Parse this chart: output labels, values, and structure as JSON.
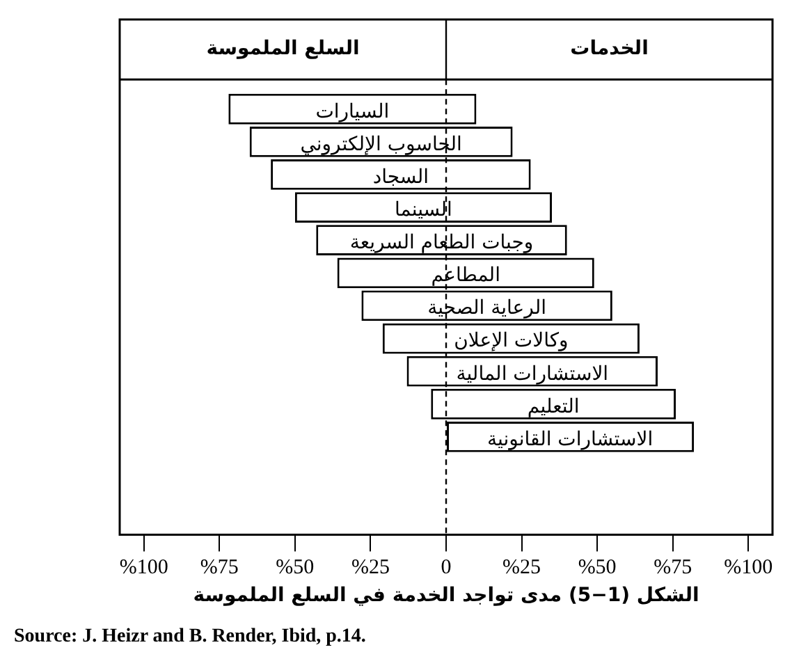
{
  "chart_data": {
    "type": "bar",
    "orientation": "horizontal",
    "xlabel": "الشكل (1−5) مدى تواجد الخدمة في السلع الملموسة",
    "categories": [
      "السيارات",
      "الحاسوب الإلكتروني",
      "السجاد",
      "السينما",
      "وجبات الطعام السريعة",
      "المطاعم",
      "الرعاية الصحية",
      "وكالات الإعلان",
      "الاستشارات المالية",
      "التعليم",
      "الاستشارات القانونية"
    ],
    "base": [
      -72,
      -65,
      -58,
      -50,
      -43,
      -36,
      -28,
      -21,
      -13,
      -5,
      0
    ],
    "values": [
      82,
      87,
      86,
      85,
      83,
      85,
      83,
      85,
      83,
      81,
      82
    ],
    "color": "#ffffff",
    "xlim": [
      -108,
      108
    ],
    "xticks": [
      {
        "value": -100,
        "label": "%100"
      },
      {
        "value": -75,
        "label": "%75"
      },
      {
        "value": -50,
        "label": "%50"
      },
      {
        "value": -25,
        "label": "%25"
      },
      0,
      {
        "value": 25,
        "label": "%25"
      },
      {
        "value": 50,
        "label": "%50"
      },
      {
        "value": 75,
        "label": "%75"
      },
      {
        "value": 100,
        "label": "%100"
      }
    ],
    "ref_lines": [
      {
        "axis": "x",
        "value": 0,
        "line_style": "dashed"
      }
    ],
    "annotations": [
      "السلع الملموسة",
      "الخدمات",
      "Source: J. Heizr and B. Render, Ibid, p.14."
    ],
    "data_labels": false,
    "grid": false,
    "legend": false
  }
}
